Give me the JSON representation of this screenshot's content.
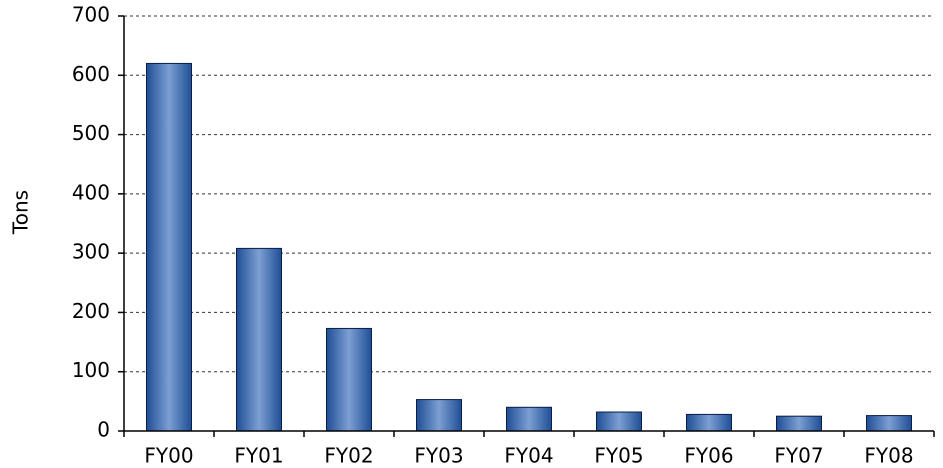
{
  "chart_data": {
    "type": "bar",
    "y_label": "Tons",
    "categories": [
      "FY00",
      "FY01",
      "FY02",
      "FY03",
      "FY04",
      "FY05",
      "FY06",
      "FY07",
      "FY08"
    ],
    "values": [
      620,
      308,
      173,
      53,
      40,
      32,
      28,
      25,
      26
    ],
    "color": "#1f4e96",
    "ylim": [
      0,
      700
    ],
    "yticks": [
      0,
      100,
      200,
      300,
      400,
      500,
      600,
      700
    ],
    "grid": true
  }
}
